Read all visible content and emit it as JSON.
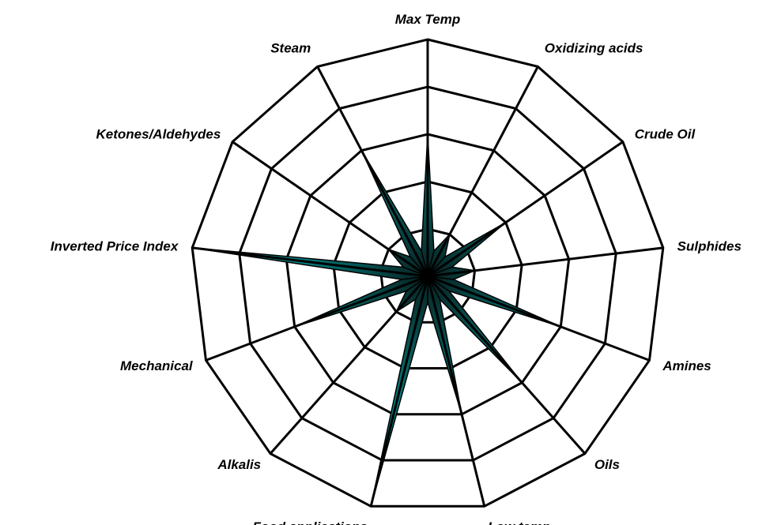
{
  "chart_data": {
    "type": "radar",
    "title": "",
    "axes": [
      "Max Temp",
      "Oxidizing acids",
      "Crude Oil",
      "Sulphides",
      "Amines",
      "Oils",
      "Low temp",
      "Food applications",
      "Alkalis",
      "Mechanical",
      "Inverted Price Index",
      "Ketones/Aldehydes",
      "Steam"
    ],
    "rings": 5,
    "rmax": 5,
    "series": [
      {
        "values": [
          3,
          1,
          2,
          1,
          3,
          3,
          3,
          5,
          1,
          3,
          5,
          1,
          3
        ]
      }
    ],
    "legend": "none",
    "colors": {
      "fill_outer": "#008080",
      "fill_inner": "#0a2020",
      "grid": "#000000",
      "background": "#ffffff"
    }
  }
}
